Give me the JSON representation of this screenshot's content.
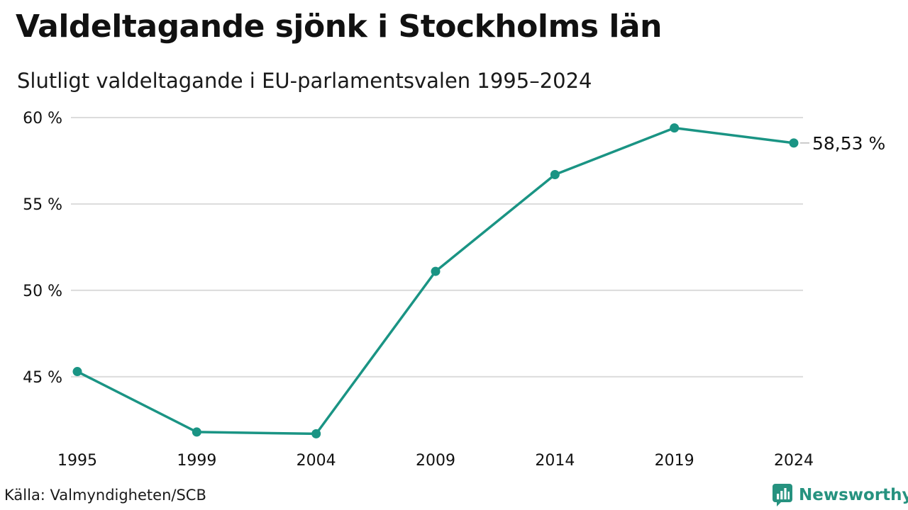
{
  "header": {
    "title": "Valdeltagande sjönk i Stockholms län",
    "subtitle": "Slutligt valdeltagande i EU-parlamentsvalen 1995–2024"
  },
  "footer": {
    "source": "Källa: Valmyndigheten/SCB",
    "brand": "Newsworthy",
    "brand_icon": "bar-chart-bubble-icon"
  },
  "colors": {
    "line": "#1a9484",
    "grid": "#dcdcdc",
    "brand": "#26927f",
    "text": "#111111"
  },
  "chart_data": {
    "type": "line",
    "x": [
      "1995",
      "1999",
      "2004",
      "2009",
      "2014",
      "2019",
      "2024"
    ],
    "series": [
      {
        "values": [
          45.3,
          41.8,
          41.7,
          51.1,
          56.7,
          59.4,
          58.53
        ]
      }
    ],
    "yticks": [
      45,
      50,
      55,
      60
    ],
    "ytick_labels": [
      "45 %",
      "50 %",
      "55 %",
      "60 %"
    ],
    "ylim": [
      41.1,
      60
    ],
    "end_label": "58,53 %",
    "grid": true,
    "legend": "none"
  }
}
